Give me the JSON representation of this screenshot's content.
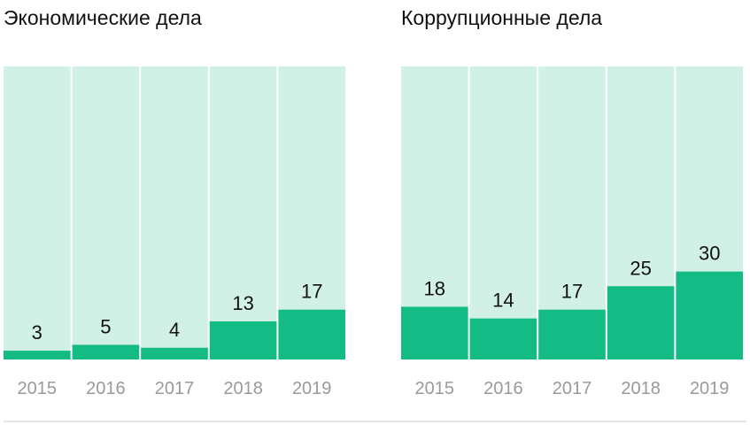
{
  "chart_data": [
    {
      "type": "bar",
      "title": "Экономические дела",
      "categories": [
        "2015",
        "2016",
        "2017",
        "2018",
        "2019"
      ],
      "values": [
        3,
        5,
        4,
        13,
        17
      ],
      "ylim": [
        0,
        100
      ],
      "grid": false,
      "colors": {
        "bar": "#14bb85",
        "background": "#d1f0e6",
        "label": "#111111",
        "tick": "#9a9a9a"
      }
    },
    {
      "type": "bar",
      "title": "Коррупционные дела",
      "categories": [
        "2015",
        "2016",
        "2017",
        "2018",
        "2019"
      ],
      "values": [
        18,
        14,
        17,
        25,
        30
      ],
      "ylim": [
        0,
        100
      ],
      "grid": false,
      "colors": {
        "bar": "#14bb85",
        "background": "#d1f0e6",
        "label": "#111111",
        "tick": "#9a9a9a"
      }
    }
  ]
}
